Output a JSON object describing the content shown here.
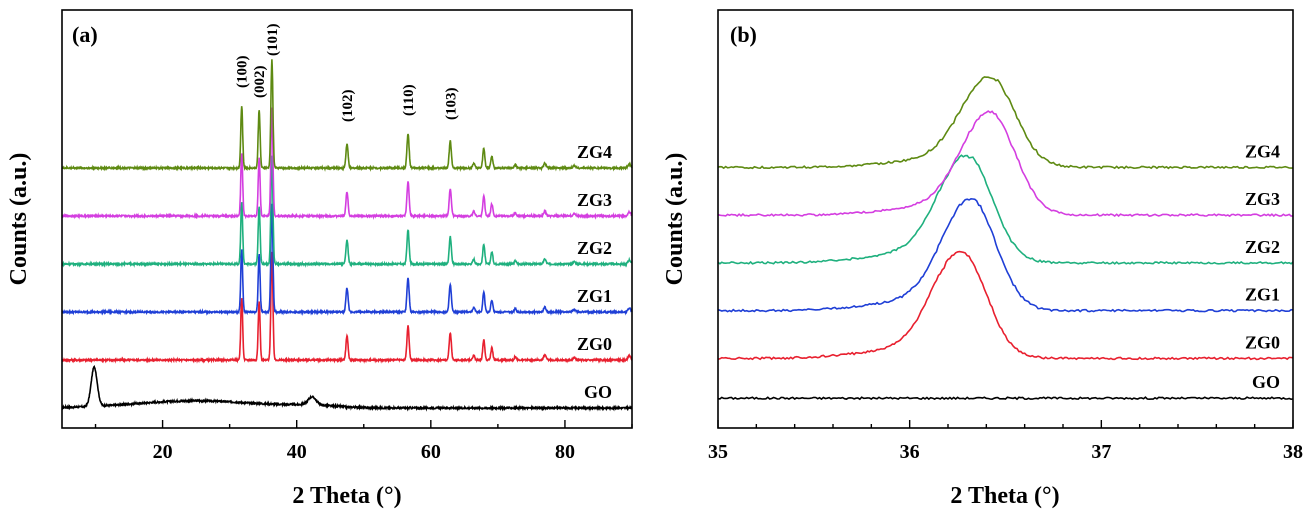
{
  "chart_data": [
    {
      "type": "line",
      "panel_label": "(a)",
      "xlabel": "2 Theta (°)",
      "ylabel": "Counts (a.u.)",
      "xlim": [
        5,
        90
      ],
      "ylim": [
        0,
        1
      ],
      "x_ticks": [
        20,
        40,
        60,
        80
      ],
      "grid": false,
      "peak_labels": [
        {
          "text": "(100)",
          "x": 31.8
        },
        {
          "text": "(002)",
          "x": 34.4
        },
        {
          "text": "(101)",
          "x": 36.3
        },
        {
          "text": "(102)",
          "x": 47.5
        },
        {
          "text": "(110)",
          "x": 56.6
        },
        {
          "text": "(103)",
          "x": 62.9
        }
      ],
      "series": [
        {
          "name": "GO",
          "color": "#000000",
          "baseline": 0.08,
          "kind": "go"
        },
        {
          "name": "ZG0",
          "color": "#e8202f",
          "baseline": 0.2,
          "kind": "zno"
        },
        {
          "name": "ZG1",
          "color": "#1f3fd6",
          "baseline": 0.32,
          "kind": "zno"
        },
        {
          "name": "ZG2",
          "color": "#1fb07e",
          "baseline": 0.44,
          "kind": "zno"
        },
        {
          "name": "ZG3",
          "color": "#d43ee0",
          "baseline": 0.56,
          "kind": "zno"
        },
        {
          "name": "ZG4",
          "color": "#5e8a12",
          "baseline": 0.68,
          "kind": "zno"
        }
      ]
    },
    {
      "type": "line",
      "panel_label": "(b)",
      "xlabel": "2 Theta (°)",
      "ylabel": "Counts (a.u.)",
      "xlim": [
        35,
        38
      ],
      "ylim": [
        0,
        1
      ],
      "x_ticks": [
        35,
        36,
        37,
        38
      ],
      "grid": false,
      "series": [
        {
          "name": "GO",
          "color": "#000000",
          "baseline": 0.1,
          "peak_center": null,
          "peak_height": 0
        },
        {
          "name": "ZG0",
          "color": "#e8202f",
          "baseline": 0.2,
          "peak_center": 36.27,
          "peak_height": 0.26
        },
        {
          "name": "ZG1",
          "color": "#1f3fd6",
          "baseline": 0.32,
          "peak_center": 36.32,
          "peak_height": 0.27
        },
        {
          "name": "ZG2",
          "color": "#1fb07e",
          "baseline": 0.44,
          "peak_center": 36.3,
          "peak_height": 0.26
        },
        {
          "name": "ZG3",
          "color": "#d43ee0",
          "baseline": 0.56,
          "peak_center": 36.42,
          "peak_height": 0.25
        },
        {
          "name": "ZG4",
          "color": "#5e8a12",
          "baseline": 0.68,
          "peak_center": 36.42,
          "peak_height": 0.22
        }
      ]
    }
  ]
}
